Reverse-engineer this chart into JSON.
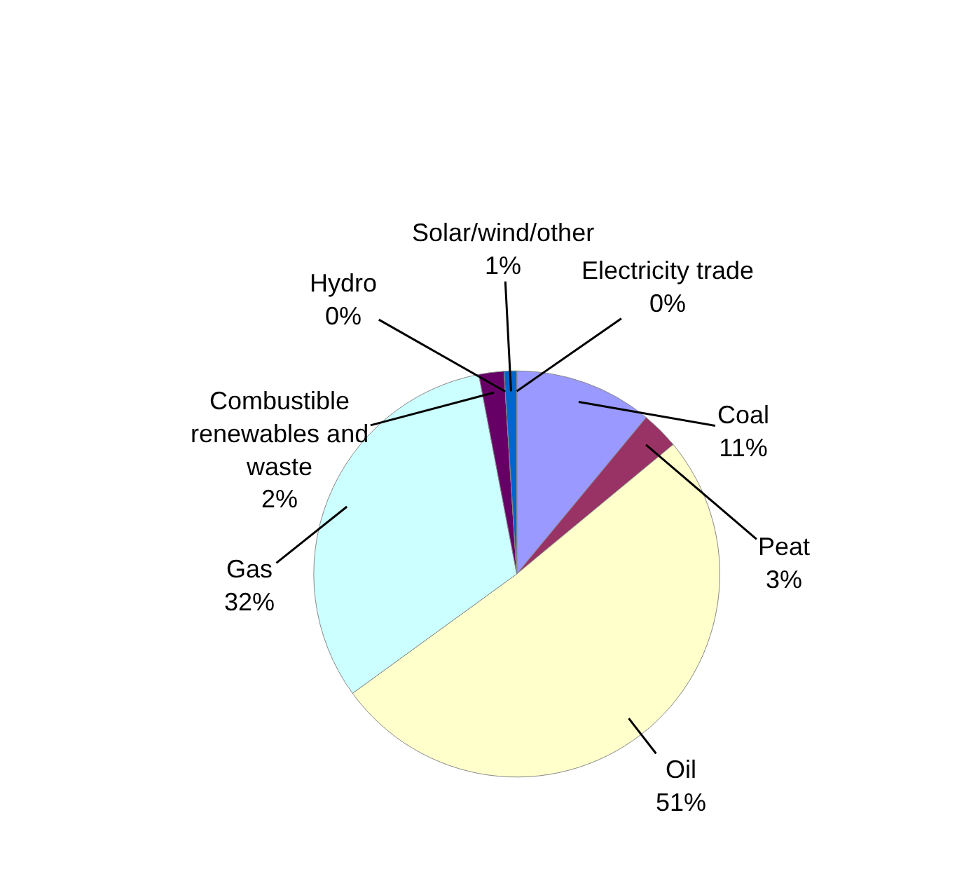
{
  "chart_data": {
    "type": "pie",
    "categories": [
      "Coal",
      "Peat",
      "Oil",
      "Gas",
      "Combustible renewables and waste",
      "Hydro",
      "Solar/wind/other",
      "Electricity trade"
    ],
    "values": [
      11,
      3,
      51,
      32,
      2,
      0,
      1,
      0
    ],
    "value_labels": [
      "11%",
      "3%",
      "51%",
      "32%",
      "2%",
      "0%",
      "1%",
      "0%"
    ],
    "colors": [
      "#9999ff",
      "#993366",
      "#ffffcc",
      "#ccffff",
      "#660066",
      "#ff8080",
      "#0066cc",
      "#ccccff"
    ],
    "legend": false
  }
}
